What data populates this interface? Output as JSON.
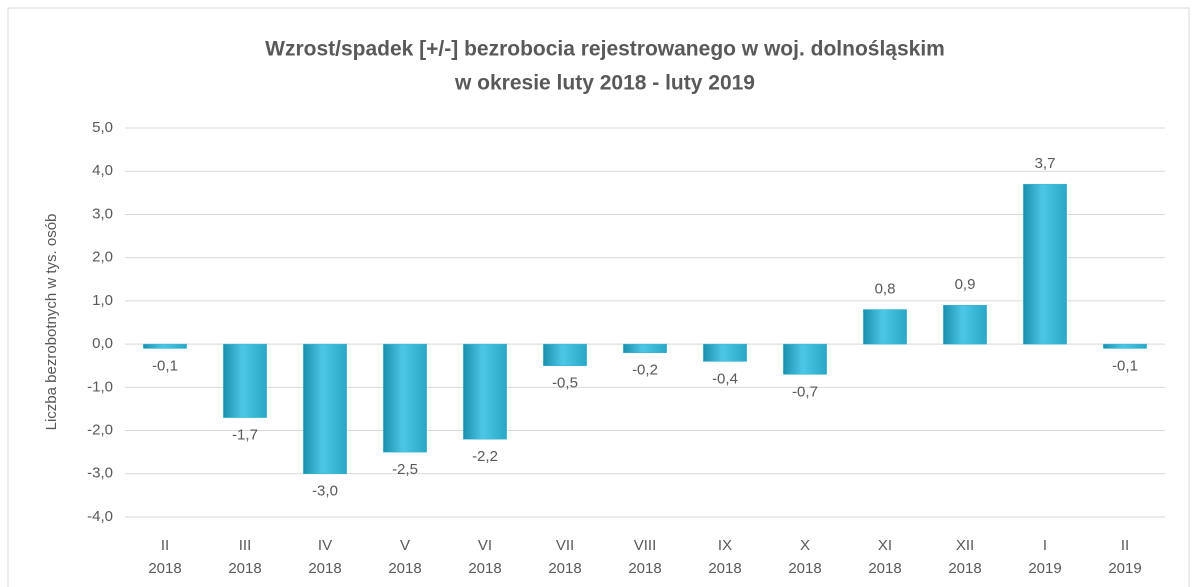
{
  "chart_data": {
    "type": "bar",
    "title": [
      "Wzrost/spadek [+/-] bezrobocia rejestrowanego w woj. dolnośląskim",
      "w okresie luty  2018 - luty 2019"
    ],
    "y_label": "Liczba bezrobotnych w tys. osób",
    "categories": [
      [
        "II",
        "2018"
      ],
      [
        "III",
        "2018"
      ],
      [
        "IV",
        "2018"
      ],
      [
        "V",
        "2018"
      ],
      [
        "VI",
        "2018"
      ],
      [
        "VII",
        "2018"
      ],
      [
        "VIII",
        "2018"
      ],
      [
        "IX",
        "2018"
      ],
      [
        "X",
        "2018"
      ],
      [
        "XI",
        "2018"
      ],
      [
        "XII",
        "2018"
      ],
      [
        "I",
        "2019"
      ],
      [
        "II",
        "2019"
      ]
    ],
    "values": [
      -0.1,
      -1.7,
      -3.0,
      -2.5,
      -2.2,
      -0.5,
      -0.2,
      -0.4,
      -0.7,
      0.8,
      0.9,
      3.7,
      -0.1
    ],
    "value_labels": [
      "-0,1",
      "-1,7",
      "-3,0",
      "-2,5",
      "-2,2",
      "-0,5",
      "-0,2",
      "-0,4",
      "-0,7",
      "0,8",
      "0,9",
      "3,7",
      "-0,1"
    ],
    "color": "#31b4d4",
    "ylim": [
      -4,
      5
    ],
    "yticks": [
      {
        "value": -4,
        "label": "-4,0"
      },
      {
        "value": -3,
        "label": "-3,0"
      },
      {
        "value": -2,
        "label": "-2,0"
      },
      {
        "value": -1,
        "label": "-1,0"
      },
      {
        "value": 0,
        "label": "0,0"
      },
      {
        "value": 1,
        "label": "1,0"
      },
      {
        "value": 2,
        "label": "2,0"
      },
      {
        "value": 3,
        "label": "3,0"
      },
      {
        "value": 4,
        "label": "4,0"
      },
      {
        "value": 5,
        "label": "5,0"
      }
    ],
    "grid": true
  }
}
